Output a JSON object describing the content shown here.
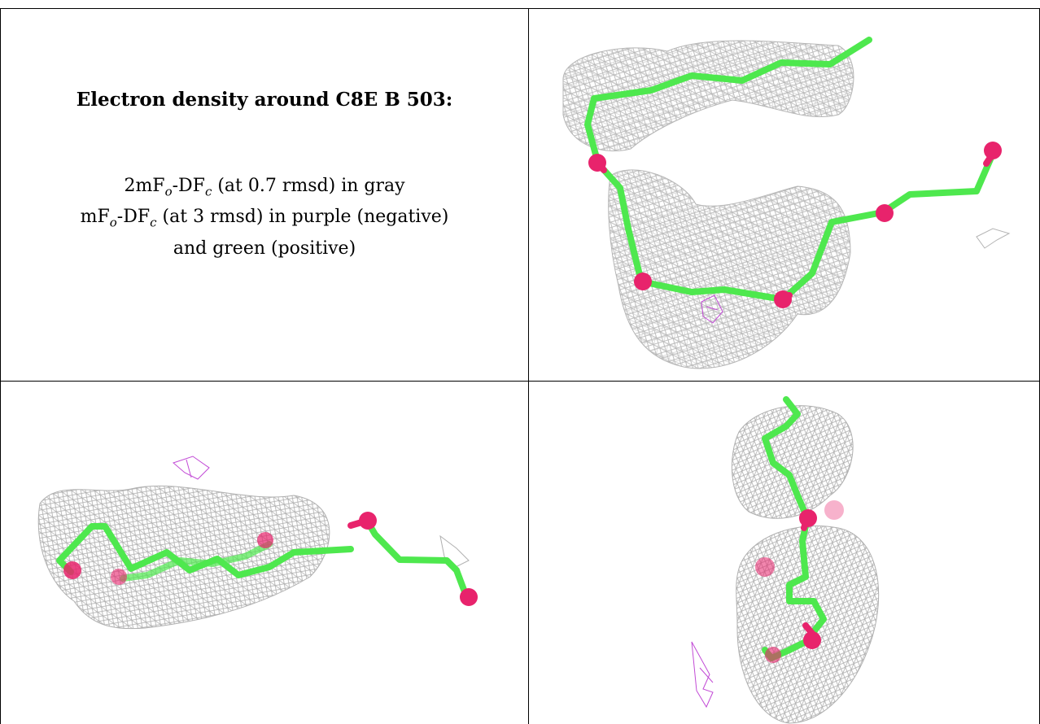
{
  "caption": {
    "title": "Electron density around C8E B 503:",
    "line1": {
      "prefix": "2mF",
      "sub1": "o",
      "mid": "-DF",
      "sub2": "c",
      "suffix": " (at 0.7 rmsd) in gray"
    },
    "line2": {
      "prefix": "mF",
      "sub1": "o",
      "mid": "-DF",
      "sub2": "c",
      "suffix": " (at 3 rmsd) in purple (negative)"
    },
    "line3": "and green (positive)"
  },
  "colors": {
    "mesh": "#b4b4b4",
    "negative_density": "#c24ad6",
    "carbon_stick": "#4ee84e",
    "oxygen_atom": "#e8236c",
    "border": "#000000"
  },
  "panels": [
    {
      "name": "top-right",
      "view": "front"
    },
    {
      "name": "bottom-left",
      "view": "side"
    },
    {
      "name": "bottom-right",
      "view": "top"
    }
  ]
}
